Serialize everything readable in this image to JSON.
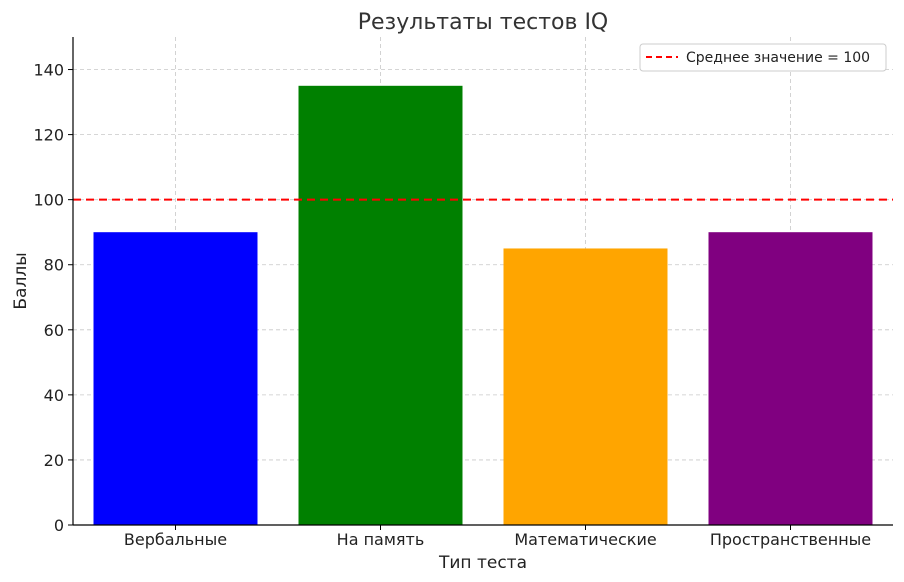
{
  "chart_data": {
    "type": "bar",
    "title": "Результаты тестов IQ",
    "xlabel": "Тип теста",
    "ylabel": "Баллы",
    "categories": [
      "Вербальные",
      "На память",
      "Математические",
      "Пространственные"
    ],
    "values": [
      90,
      135,
      85,
      90
    ],
    "bar_colors": [
      "#0000ff",
      "#008000",
      "#ffa500",
      "#800080"
    ],
    "ylim": [
      0,
      150
    ],
    "yticks": [
      0,
      20,
      40,
      60,
      80,
      100,
      120,
      140
    ],
    "grid": true,
    "reference_line": {
      "value": 100,
      "label": "Среднее значение = 100",
      "color": "#ff0000",
      "style": "dashed"
    },
    "legend_position": "top-right"
  }
}
